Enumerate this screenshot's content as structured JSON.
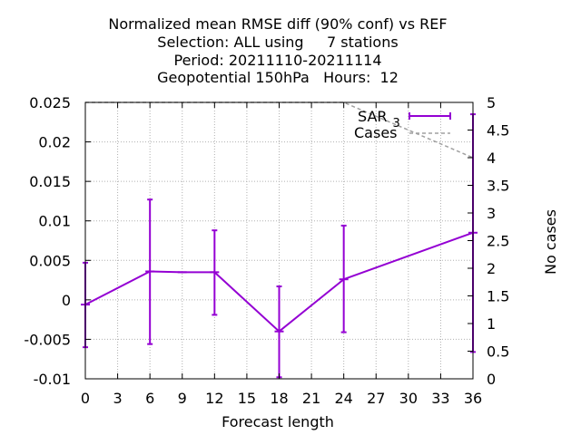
{
  "chart_data": {
    "type": "line",
    "title_lines": [
      "Normalized mean RMSE diff (90% conf) vs REF",
      "Selection: ALL using     7 stations",
      "Period: 20211110-20211114",
      "Geopotential 150hPa   Hours:  12"
    ],
    "xlabel": "Forecast length",
    "ylabel": "",
    "y2label": "No cases",
    "x_ticks": [
      0,
      3,
      6,
      9,
      12,
      15,
      18,
      21,
      24,
      27,
      30,
      33,
      36
    ],
    "y_ticks": [
      -0.01,
      -0.005,
      0,
      0.005,
      0.01,
      0.015,
      0.02,
      0.025
    ],
    "y_tick_labels": [
      "-0.01",
      "-0.005",
      "0",
      "0.005",
      "0.01",
      "0.015",
      "0.02",
      "0.025"
    ],
    "y2_ticks": [
      0,
      0.5,
      1,
      1.5,
      2,
      2.5,
      3,
      3.5,
      4,
      4.5,
      5
    ],
    "y2_tick_labels": [
      "0",
      "0.5",
      "1",
      "1.5",
      "2",
      "2.5",
      "3",
      "3.5",
      "4",
      "4.5",
      "5"
    ],
    "xlim": [
      0,
      36
    ],
    "ylim": [
      -0.01,
      0.025
    ],
    "y2lim": [
      0,
      5
    ],
    "grid": true,
    "legend_position": "top-right",
    "series": [
      {
        "name": "SAR",
        "name_subscript": "3",
        "color": "#9400d3",
        "axis": "left",
        "x": [
          0,
          6,
          9,
          12,
          18,
          24,
          36
        ],
        "values": [
          -0.0006,
          0.0036,
          0.0035,
          0.0035,
          -0.004,
          0.0026,
          0.0085
        ],
        "err_low": [
          -0.006,
          -0.0056,
          null,
          -0.0019,
          -0.0098,
          -0.0041,
          -0.0066
        ],
        "err_high": [
          0.0047,
          0.0127,
          null,
          0.0088,
          0.0017,
          0.0094,
          0.0235
        ]
      },
      {
        "name": "Cases",
        "color": "#a0a0a0",
        "axis": "right",
        "dashed": true,
        "x": [
          0,
          24,
          36
        ],
        "values": [
          5,
          5,
          4
        ]
      }
    ]
  }
}
